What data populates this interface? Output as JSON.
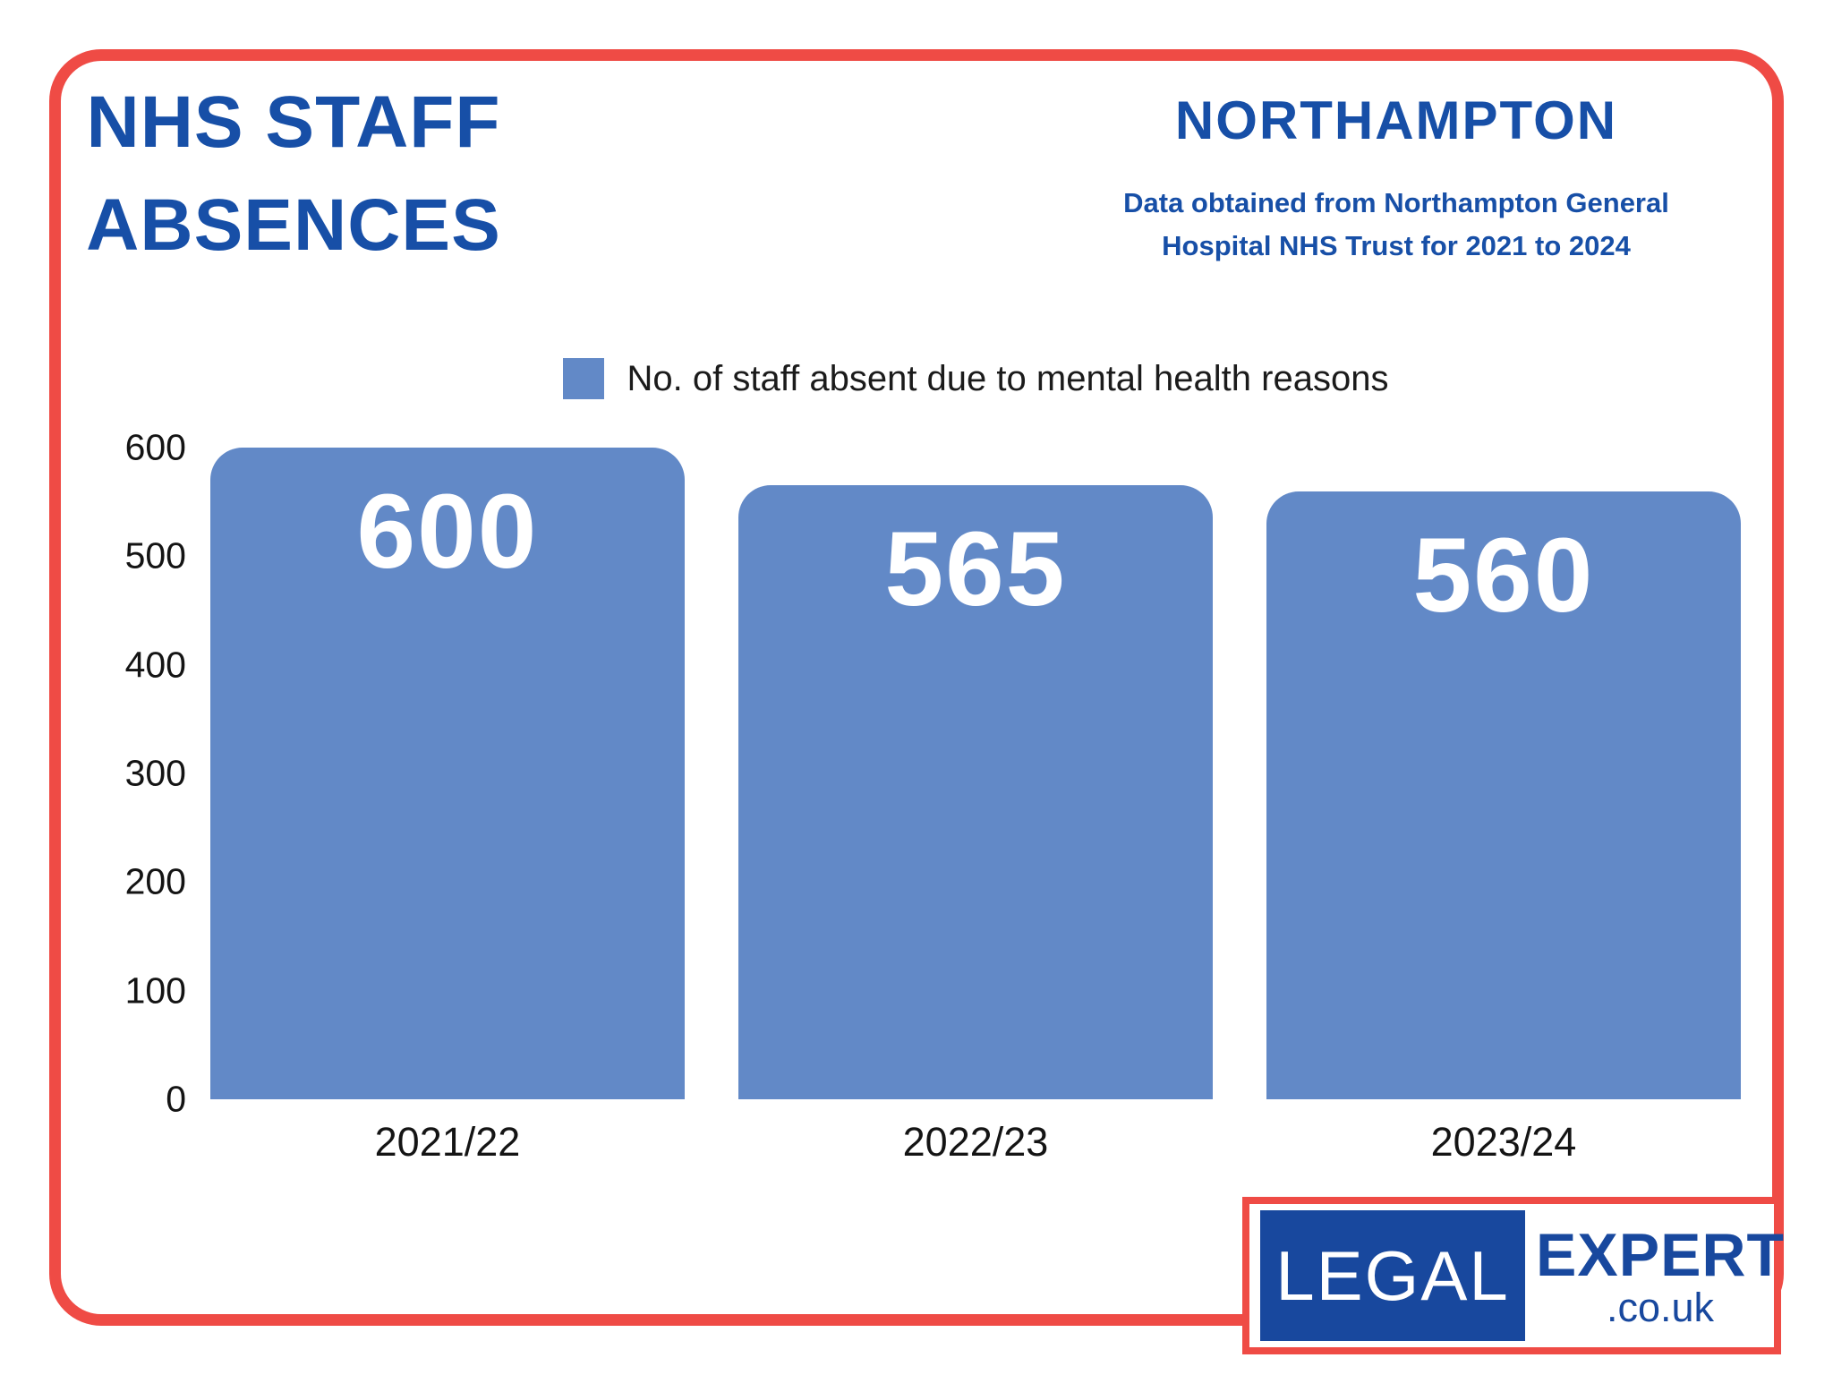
{
  "header": {
    "title": "NHS STAFF\nABSENCES",
    "location": "NORTHAMPTON",
    "source_note": "Data obtained from Northampton General Hospital NHS Trust for 2021 to 2024"
  },
  "legend": {
    "label": "No. of staff absent due to mental health reasons"
  },
  "chart_data": {
    "type": "bar",
    "title": "NHS STAFF ABSENCES",
    "categories": [
      "2021/22",
      "2022/23",
      "2023/24"
    ],
    "values": [
      600,
      565,
      560
    ],
    "series_label": "No. of staff absent due to mental health reasons",
    "xlabel": "",
    "ylabel": "",
    "ylim": [
      0,
      600
    ],
    "yticks": [
      0,
      100,
      200,
      300,
      400,
      500,
      600
    ],
    "grid": false,
    "legend_position": "top",
    "bar_color": "#6289c7",
    "value_label_color": "#ffffff"
  },
  "colors": {
    "accent_red": "#ef4b45",
    "brand_blue": "#174fa7",
    "logo_blue": "#18489e",
    "bar_blue": "#6289c7"
  },
  "logo": {
    "part1": "LEGAL",
    "part2": "EXPERT",
    "part3": ".co.uk"
  }
}
